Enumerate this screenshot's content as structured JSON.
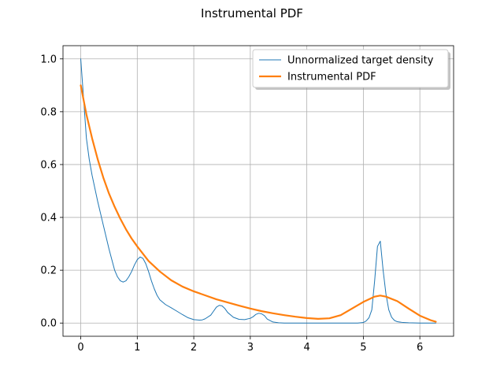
{
  "chart_data": {
    "type": "line",
    "title": "Instrumental PDF",
    "xlabel": "",
    "ylabel": "",
    "xlim": [
      -0.314,
      6.597
    ],
    "ylim": [
      -0.05,
      1.05
    ],
    "xticks": [
      0,
      1,
      2,
      3,
      4,
      5,
      6
    ],
    "yticks": [
      0.0,
      0.2,
      0.4,
      0.6,
      0.8,
      1.0
    ],
    "xtick_labels": [
      "0",
      "1",
      "2",
      "3",
      "4",
      "5",
      "6"
    ],
    "ytick_labels": [
      "0.0",
      "0.2",
      "0.4",
      "0.6",
      "0.8",
      "1.0"
    ],
    "grid": true,
    "legend": {
      "placement": "top-right",
      "shadow": true
    },
    "series": [
      {
        "name": "Unnormalized target density",
        "color": "#1f77b4",
        "linewidth": 1,
        "x": [
          0.0,
          0.05,
          0.1,
          0.15,
          0.2,
          0.3,
          0.4,
          0.5,
          0.55,
          0.6,
          0.65,
          0.7,
          0.75,
          0.8,
          0.85,
          0.9,
          0.95,
          1.0,
          1.05,
          1.1,
          1.15,
          1.2,
          1.25,
          1.3,
          1.35,
          1.4,
          1.5,
          1.6,
          1.7,
          1.8,
          1.9,
          2.0,
          2.1,
          2.15,
          2.2,
          2.3,
          2.35,
          2.4,
          2.45,
          2.5,
          2.55,
          2.6,
          2.7,
          2.8,
          2.9,
          3.0,
          3.05,
          3.1,
          3.15,
          3.2,
          3.25,
          3.3,
          3.4,
          3.5,
          3.6,
          4.0,
          4.5,
          4.9,
          5.0,
          5.05,
          5.1,
          5.15,
          5.2,
          5.25,
          5.3,
          5.35,
          5.4,
          5.45,
          5.5,
          5.55,
          5.6,
          5.7,
          5.8,
          6.0,
          6.283
        ],
        "y": [
          1.0,
          0.85,
          0.7,
          0.62,
          0.56,
          0.46,
          0.37,
          0.28,
          0.24,
          0.2,
          0.175,
          0.16,
          0.155,
          0.16,
          0.175,
          0.195,
          0.22,
          0.24,
          0.25,
          0.245,
          0.225,
          0.195,
          0.16,
          0.13,
          0.105,
          0.088,
          0.07,
          0.058,
          0.045,
          0.032,
          0.02,
          0.013,
          0.011,
          0.012,
          0.016,
          0.03,
          0.045,
          0.06,
          0.067,
          0.065,
          0.055,
          0.04,
          0.022,
          0.014,
          0.013,
          0.018,
          0.024,
          0.033,
          0.037,
          0.035,
          0.028,
          0.015,
          0.004,
          0.001,
          0.0,
          0.0,
          0.0,
          0.0,
          0.002,
          0.008,
          0.02,
          0.05,
          0.16,
          0.29,
          0.31,
          0.2,
          0.11,
          0.05,
          0.022,
          0.01,
          0.005,
          0.002,
          0.001,
          0.0,
          0.0
        ]
      },
      {
        "name": "Instrumental PDF",
        "color": "#ff7f0e",
        "linewidth": 2.2,
        "x": [
          0.0,
          0.1,
          0.2,
          0.3,
          0.4,
          0.5,
          0.6,
          0.7,
          0.8,
          0.9,
          1.0,
          1.2,
          1.4,
          1.6,
          1.8,
          2.0,
          2.2,
          2.4,
          2.6,
          2.8,
          3.0,
          3.2,
          3.4,
          3.6,
          3.8,
          4.0,
          4.2,
          4.4,
          4.6,
          4.8,
          5.0,
          5.2,
          5.3,
          5.4,
          5.6,
          5.8,
          6.0,
          6.2,
          6.283
        ],
        "y": [
          0.9,
          0.79,
          0.7,
          0.62,
          0.55,
          0.49,
          0.44,
          0.395,
          0.355,
          0.32,
          0.29,
          0.235,
          0.195,
          0.162,
          0.138,
          0.12,
          0.105,
          0.09,
          0.078,
          0.066,
          0.055,
          0.045,
          0.037,
          0.03,
          0.024,
          0.019,
          0.016,
          0.018,
          0.03,
          0.055,
          0.08,
          0.1,
          0.104,
          0.1,
          0.083,
          0.055,
          0.028,
          0.01,
          0.005
        ]
      }
    ]
  }
}
